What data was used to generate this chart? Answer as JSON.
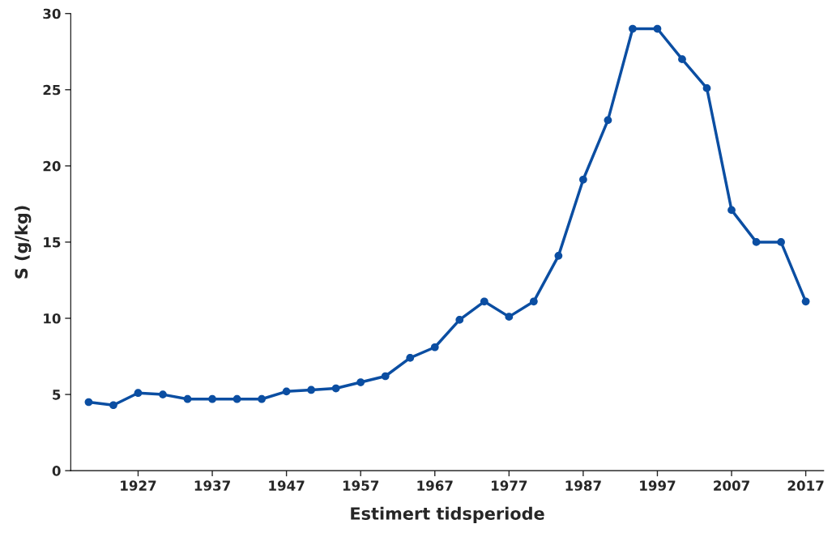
{
  "chart_data": {
    "type": "line",
    "xlabel": "Estimert tidsperiode",
    "ylabel": "S (g/kg)",
    "categories": [
      null,
      null,
      "1927",
      null,
      null,
      "1937",
      null,
      null,
      "1947",
      null,
      null,
      "1957",
      null,
      null,
      "1967",
      null,
      null,
      "1977",
      null,
      null,
      "1987",
      null,
      null,
      "1997",
      null,
      null,
      "2007",
      null,
      null,
      "2017"
    ],
    "series": [
      {
        "color": "#0b4ea2",
        "values": [
          4.5,
          4.3,
          5.1,
          5.0,
          4.7,
          4.7,
          4.7,
          4.7,
          5.2,
          5.3,
          5.4,
          5.8,
          6.2,
          7.4,
          8.1,
          9.9,
          11.1,
          10.1,
          11.1,
          14.1,
          19.1,
          23.0,
          29.0,
          29.0,
          27.0,
          25.1,
          17.1,
          15.0,
          15.0,
          11.1
        ]
      }
    ],
    "ylim": [
      0,
      30
    ],
    "yticks": [
      0,
      5,
      10,
      15,
      20,
      25,
      30
    ],
    "marker": "circle",
    "line_style": "solid",
    "grid": false,
    "legend": false
  }
}
